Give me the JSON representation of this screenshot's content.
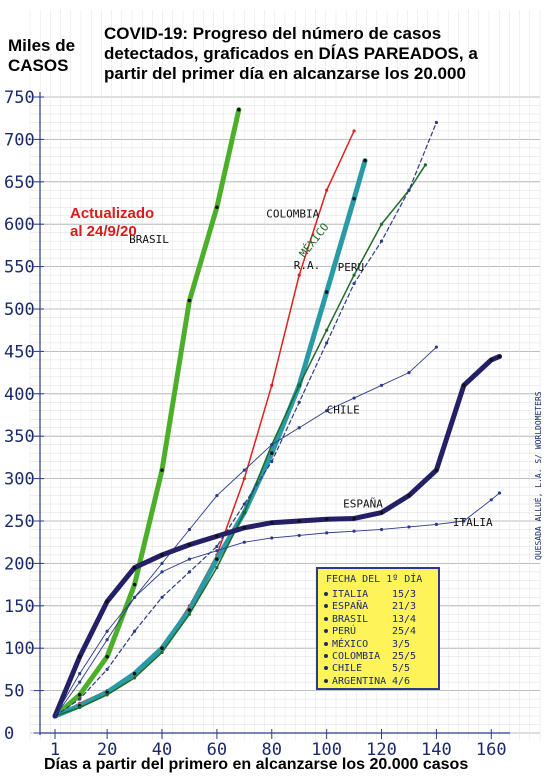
{
  "header": {
    "ylabel_line1": "Miles de",
    "ylabel_line2": "CASOS",
    "title_line1": "COVID-19: Progreso del número de casos",
    "title_line2": "detectados, graficados en DÍAS PAREADOS, a",
    "title_line3": "partir del primer día en alcanzarse los 20.000",
    "update_line1": "Actualizado",
    "update_line2": "al 24/9/20",
    "xlabel": "Días a partir del primero en alcanzarse los 20.000 casos"
  },
  "legend": {
    "header": "FECHA DEL 1º DÍA",
    "rows": [
      {
        "country": "ITALIA",
        "date": "15/3"
      },
      {
        "country": "ESPAÑA",
        "date": "21/3"
      },
      {
        "country": "BRASIL",
        "date": "13/4"
      },
      {
        "country": "PERÚ",
        "date": "25/4"
      },
      {
        "country": "MÉXICO",
        "date": "3/5"
      },
      {
        "country": "COLOMBIA",
        "date": "25/5"
      },
      {
        "country": "CHILE",
        "date": "5/5"
      },
      {
        "country": "ARGENTINA",
        "date": "4/6"
      }
    ]
  },
  "source_note": "QUESADA ALLUÉ, L.A. S/ WORLDOMETERS",
  "chart_data": {
    "type": "line",
    "xlabel": "Días a partir del primero en alcanzarse los 20.000 casos",
    "ylabel": "Miles de CASOS",
    "xlim": [
      1,
      165
    ],
    "ylim": [
      0,
      750
    ],
    "x_ticks": [
      1,
      20,
      40,
      60,
      80,
      100,
      120,
      140,
      160
    ],
    "y_ticks": [
      0,
      50,
      100,
      150,
      200,
      250,
      300,
      350,
      400,
      450,
      500,
      550,
      600,
      650,
      700,
      750
    ],
    "grid": true,
    "series": [
      {
        "name": "BRASIL",
        "label": "BRASIL",
        "color": "#4caf2a",
        "width": 5,
        "x": [
          1,
          10,
          20,
          30,
          40,
          50,
          60,
          68
        ],
        "y": [
          20,
          45,
          90,
          175,
          310,
          510,
          620,
          735
        ]
      },
      {
        "name": "COLOMBIA",
        "label": "COLOMBIA",
        "color": "#e02020",
        "width": 1.5,
        "x": [
          1,
          10,
          20,
          30,
          40,
          50,
          60,
          70,
          80,
          90,
          100,
          110
        ],
        "y": [
          20,
          35,
          50,
          70,
          100,
          150,
          210,
          300,
          410,
          540,
          640,
          710
        ]
      },
      {
        "name": "RA",
        "label": "R.A.",
        "color": "#2a9aa6",
        "width": 5,
        "x": [
          1,
          10,
          20,
          30,
          40,
          50,
          60,
          70,
          80,
          90,
          100,
          110,
          114
        ],
        "y": [
          20,
          32,
          48,
          70,
          100,
          145,
          205,
          260,
          330,
          410,
          520,
          630,
          675
        ]
      },
      {
        "name": "MEXICO",
        "label": "MÉXICO",
        "color": "#1d6b2a",
        "width": 1.5,
        "x": [
          1,
          10,
          20,
          30,
          40,
          50,
          60,
          70,
          80,
          90,
          100,
          110,
          120,
          130,
          136
        ],
        "y": [
          20,
          30,
          45,
          65,
          95,
          140,
          195,
          260,
          340,
          410,
          475,
          540,
          600,
          640,
          670
        ]
      },
      {
        "name": "PERU",
        "label": "PERÚ",
        "color": "#2b3a8a",
        "width": 1.2,
        "dash": "4,3",
        "x": [
          1,
          10,
          20,
          30,
          40,
          50,
          60,
          70,
          80,
          90,
          100,
          110,
          120,
          130,
          140
        ],
        "y": [
          20,
          40,
          75,
          120,
          160,
          190,
          220,
          270,
          320,
          390,
          460,
          530,
          580,
          640,
          720
        ]
      },
      {
        "name": "CHILE",
        "label": "CHILE",
        "color": "#2b3a8a",
        "width": 0.9,
        "x": [
          1,
          10,
          20,
          30,
          40,
          50,
          60,
          70,
          80,
          90,
          100,
          110,
          120,
          130,
          140
        ],
        "y": [
          20,
          60,
          110,
          160,
          200,
          240,
          280,
          310,
          340,
          360,
          380,
          395,
          410,
          425,
          455
        ]
      },
      {
        "name": "ESPANA",
        "label": "ESPAÑA",
        "color": "#241f66",
        "width": 5,
        "x": [
          1,
          10,
          20,
          30,
          40,
          50,
          60,
          70,
          80,
          90,
          100,
          110,
          120,
          130,
          140,
          150,
          160,
          163
        ],
        "y": [
          20,
          90,
          155,
          195,
          210,
          222,
          232,
          242,
          248,
          250,
          252,
          253,
          260,
          280,
          310,
          410,
          440,
          444
        ]
      },
      {
        "name": "ITALIA",
        "label": "ITALIA",
        "color": "#2b3a8a",
        "width": 0.9,
        "x": [
          1,
          10,
          20,
          30,
          40,
          50,
          60,
          70,
          80,
          90,
          100,
          110,
          120,
          130,
          140,
          150,
          160,
          163
        ],
        "y": [
          20,
          70,
          120,
          160,
          190,
          205,
          215,
          225,
          230,
          233,
          236,
          238,
          240,
          243,
          246,
          250,
          275,
          283
        ]
      }
    ]
  }
}
